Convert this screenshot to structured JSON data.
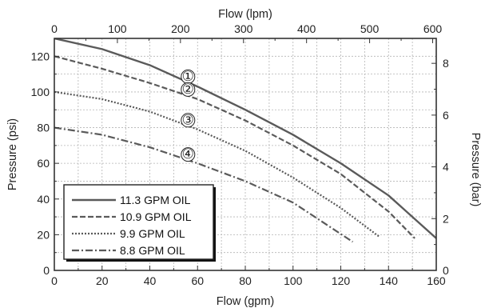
{
  "chart_data": {
    "type": "line",
    "x_bottom": {
      "label": "Flow (gpm)",
      "ticks": [
        "0",
        "20",
        "40",
        "60",
        "80",
        "100",
        "120",
        "140",
        "160"
      ],
      "range": [
        0,
        160
      ]
    },
    "x_top": {
      "label": "Flow (lpm)",
      "ticks": [
        "0",
        "100",
        "200",
        "300",
        "400",
        "500",
        "600"
      ],
      "range": [
        0,
        605.7
      ]
    },
    "y_left": {
      "label": "Pressure (psi)",
      "ticks": [
        "0",
        "20",
        "40",
        "60",
        "80",
        "100",
        "120"
      ],
      "range": [
        0,
        130
      ]
    },
    "y_right": {
      "label": "Pressure (bar)",
      "ticks": [
        "0",
        "2",
        "4",
        "6",
        "8"
      ]
    },
    "grid": true,
    "legend_position": "bottom-left",
    "series": [
      {
        "name": "11.3 GPM OIL",
        "marker": "①",
        "style": "solid",
        "x": [
          0,
          20,
          40,
          60,
          80,
          100,
          120,
          140,
          160
        ],
        "y": [
          130,
          124,
          115,
          103,
          90,
          76,
          60,
          42,
          18
        ]
      },
      {
        "name": "10.9 GPM OIL",
        "marker": "②",
        "style": "dashed",
        "x": [
          0,
          20,
          40,
          60,
          80,
          100,
          120,
          140,
          151
        ],
        "y": [
          120,
          113,
          105,
          96,
          84,
          70,
          54,
          33,
          18
        ]
      },
      {
        "name": "9.9 GPM OIL",
        "marker": "③",
        "style": "dotted",
        "x": [
          0,
          20,
          40,
          60,
          80,
          100,
          120,
          136
        ],
        "y": [
          100,
          96,
          89,
          79,
          67,
          52,
          35,
          19
        ]
      },
      {
        "name": "8.8 GPM OIL",
        "marker": "④",
        "style": "dashdot",
        "x": [
          0,
          20,
          40,
          60,
          80,
          100,
          125
        ],
        "y": [
          80,
          76,
          69,
          60,
          50,
          38,
          16
        ]
      }
    ],
    "colors": {
      "line": "#5a5a5a",
      "grid": "#b4b4b4",
      "frame": "#333333"
    }
  }
}
